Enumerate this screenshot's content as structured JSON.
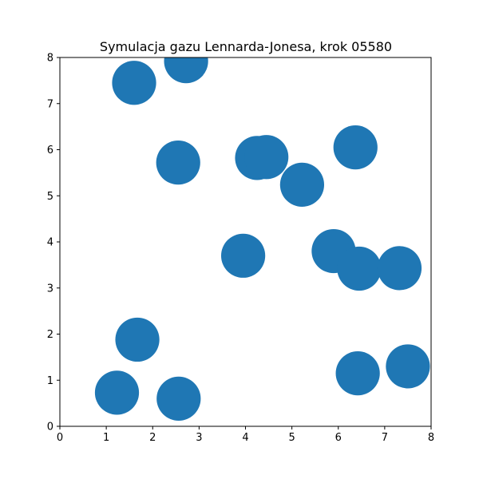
{
  "chart_data": {
    "type": "scatter",
    "title": "Symulacja gazu Lennarda-Jonesa, krok 05580",
    "xlabel": "",
    "ylabel": "",
    "xlim": [
      0,
      8
    ],
    "ylim": [
      0,
      8
    ],
    "xticks": [
      "0",
      "1",
      "2",
      "3",
      "4",
      "5",
      "6",
      "7",
      "8"
    ],
    "yticks": [
      "0",
      "1",
      "2",
      "3",
      "4",
      "5",
      "6",
      "7",
      "8"
    ],
    "grid": false,
    "marker_color": "#1f77b4",
    "marker_diameter_units": 0.95,
    "points": [
      {
        "x": 1.6,
        "y": 7.45
      },
      {
        "x": 2.72,
        "y": 7.92
      },
      {
        "x": 2.55,
        "y": 5.72
      },
      {
        "x": 4.25,
        "y": 5.82
      },
      {
        "x": 4.45,
        "y": 5.84
      },
      {
        "x": 5.22,
        "y": 5.24
      },
      {
        "x": 6.37,
        "y": 6.05
      },
      {
        "x": 3.95,
        "y": 3.7
      },
      {
        "x": 5.9,
        "y": 3.8
      },
      {
        "x": 6.45,
        "y": 3.42
      },
      {
        "x": 7.32,
        "y": 3.43
      },
      {
        "x": 1.67,
        "y": 1.88
      },
      {
        "x": 1.23,
        "y": 0.73
      },
      {
        "x": 2.56,
        "y": 0.6
      },
      {
        "x": 6.42,
        "y": 1.15
      },
      {
        "x": 7.5,
        "y": 1.3
      }
    ]
  }
}
